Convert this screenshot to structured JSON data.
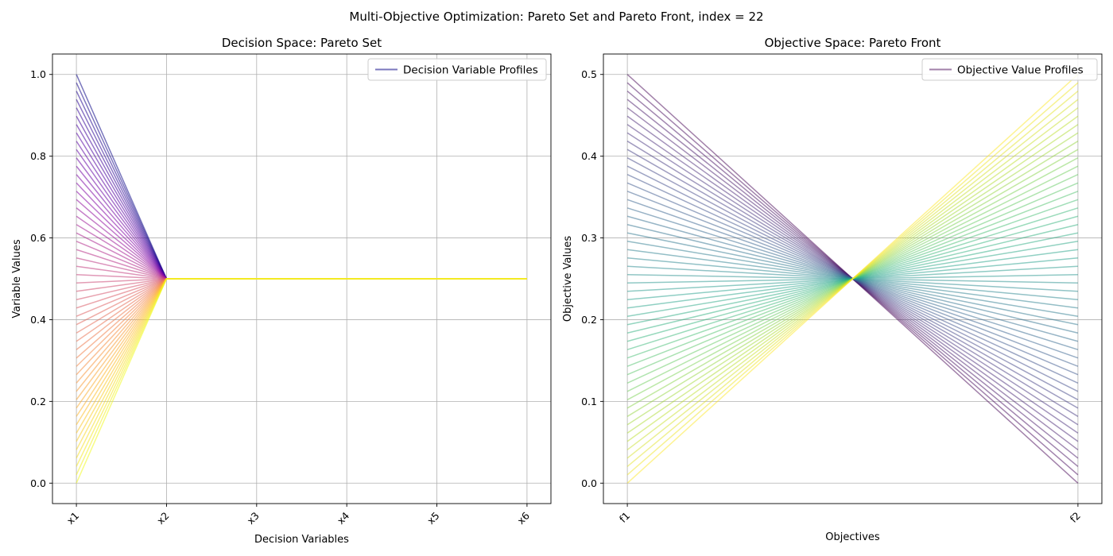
{
  "figure": {
    "suptitle": "Multi-Objective Optimization: Pareto Set and Pareto Front, index = 22"
  },
  "chart_data": [
    {
      "type": "line",
      "subtype": "parallel-coordinates",
      "title": "Decision Space: Pareto Set",
      "xlabel": "Decision Variables",
      "ylabel": "Variable Values",
      "categories": [
        "x1",
        "x2",
        "x3",
        "x4",
        "x5",
        "x6"
      ],
      "xtick_rotation_deg": 45,
      "ylim": [
        -0.05,
        1.05
      ],
      "yticks": [
        0.0,
        0.2,
        0.4,
        0.6,
        0.8,
        1.0
      ],
      "ytick_labels": [
        "0.0",
        "0.2",
        "0.4",
        "0.6",
        "0.8",
        "1.0"
      ],
      "grid": true,
      "legend": {
        "label": "Decision Variable Profiles",
        "position": "upper right"
      },
      "colormap": "plasma",
      "line_alpha": 0.55,
      "n_profiles": 50,
      "profile_rule": "x1 = 1 - i/49 for i in 0..49; x2..x6 = 0.5",
      "series": {
        "x1_values": [
          1.0,
          0.9796,
          0.9592,
          0.9388,
          0.9184,
          0.898,
          0.8776,
          0.8571,
          0.8367,
          0.8163,
          0.7959,
          0.7755,
          0.7551,
          0.7347,
          0.7143,
          0.6939,
          0.6735,
          0.6531,
          0.6327,
          0.6122,
          0.5918,
          0.5714,
          0.551,
          0.5306,
          0.5102,
          0.4898,
          0.4694,
          0.449,
          0.4286,
          0.4082,
          0.3878,
          0.3673,
          0.3469,
          0.3265,
          0.3061,
          0.2857,
          0.2653,
          0.2449,
          0.2245,
          0.2041,
          0.1837,
          0.1633,
          0.1429,
          0.1224,
          0.102,
          0.0816,
          0.0612,
          0.0408,
          0.0204,
          0.0
        ],
        "other_values": [
          0.5,
          0.5,
          0.5,
          0.5,
          0.5
        ]
      }
    },
    {
      "type": "line",
      "subtype": "parallel-coordinates",
      "title": "Objective Space: Pareto Front",
      "xlabel": "Objectives",
      "ylabel": "Objective Values",
      "categories": [
        "f1",
        "f2"
      ],
      "xtick_rotation_deg": 45,
      "ylim": [
        -0.025,
        0.525
      ],
      "yticks": [
        0.0,
        0.1,
        0.2,
        0.3,
        0.4,
        0.5
      ],
      "ytick_labels": [
        "0.0",
        "0.1",
        "0.2",
        "0.3",
        "0.4",
        "0.5"
      ],
      "grid": true,
      "legend": {
        "label": "Objective Value Profiles",
        "position": "upper right"
      },
      "colormap": "viridis",
      "line_alpha": 0.5,
      "n_profiles": 50,
      "profile_rule": "f1 = 0.5 - 0.5*i/49, f2 = 0.5*i/49 for i in 0..49",
      "series": {
        "f1_values": [
          0.5,
          0.4898,
          0.4796,
          0.4694,
          0.4592,
          0.449,
          0.4388,
          0.4286,
          0.4184,
          0.4082,
          0.398,
          0.3878,
          0.3776,
          0.3673,
          0.3571,
          0.3469,
          0.3367,
          0.3265,
          0.3163,
          0.3061,
          0.2959,
          0.2857,
          0.2755,
          0.2653,
          0.2551,
          0.2449,
          0.2347,
          0.2245,
          0.2143,
          0.2041,
          0.1939,
          0.1837,
          0.1735,
          0.1633,
          0.1531,
          0.1429,
          0.1327,
          0.1224,
          0.1122,
          0.102,
          0.0918,
          0.0816,
          0.0714,
          0.0612,
          0.051,
          0.0408,
          0.0306,
          0.0204,
          0.0102,
          0.0
        ],
        "f2_values": [
          0.0,
          0.0102,
          0.0204,
          0.0306,
          0.0408,
          0.051,
          0.0612,
          0.0714,
          0.0816,
          0.0918,
          0.102,
          0.1122,
          0.1224,
          0.1327,
          0.1429,
          0.1531,
          0.1633,
          0.1735,
          0.1837,
          0.1939,
          0.2041,
          0.2143,
          0.2245,
          0.2347,
          0.2449,
          0.2551,
          0.2653,
          0.2755,
          0.2857,
          0.2959,
          0.3061,
          0.3163,
          0.3265,
          0.3367,
          0.3469,
          0.3571,
          0.3673,
          0.3776,
          0.3878,
          0.398,
          0.4082,
          0.4184,
          0.4286,
          0.4388,
          0.449,
          0.4592,
          0.4694,
          0.4796,
          0.4898,
          0.5
        ]
      }
    }
  ]
}
